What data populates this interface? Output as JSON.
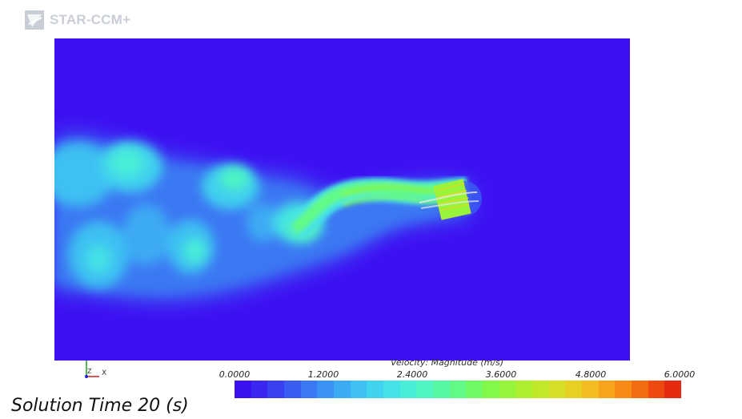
{
  "app": {
    "logo_text": "STAR-CCM+",
    "logo_icon": "star-ccm-logo-icon"
  },
  "scene": {
    "background_color": "#3d0ff2",
    "field": "Velocity magnitude contour - vortex wake behind object"
  },
  "axes_triad": {
    "z_label": "Z",
    "x_label": "X"
  },
  "colorbar": {
    "title": "Velocity: Magnitude (m/s)",
    "labels": [
      "0.0000",
      "1.2000",
      "2.4000",
      "3.6000",
      "4.8000",
      "6.0000"
    ],
    "min": 0,
    "max": 6,
    "colors": [
      "#3b10f0",
      "#3a26f0",
      "#3a40f1",
      "#3a5cf2",
      "#3b78f3",
      "#3c92f4",
      "#3daaf4",
      "#3ec0f2",
      "#40d2ee",
      "#44e2e6",
      "#48eed8",
      "#4ef4c2",
      "#56f8a6",
      "#62fa86",
      "#70fa66",
      "#82f84a",
      "#96f43a",
      "#acee30",
      "#c2e82a",
      "#d6de26",
      "#e8d022",
      "#f4bc1e",
      "#f8a41a",
      "#f88a16",
      "#f46c12",
      "#ee4a10",
      "#e62a10"
    ]
  },
  "solution_time": "Solution Time 20 (s)"
}
